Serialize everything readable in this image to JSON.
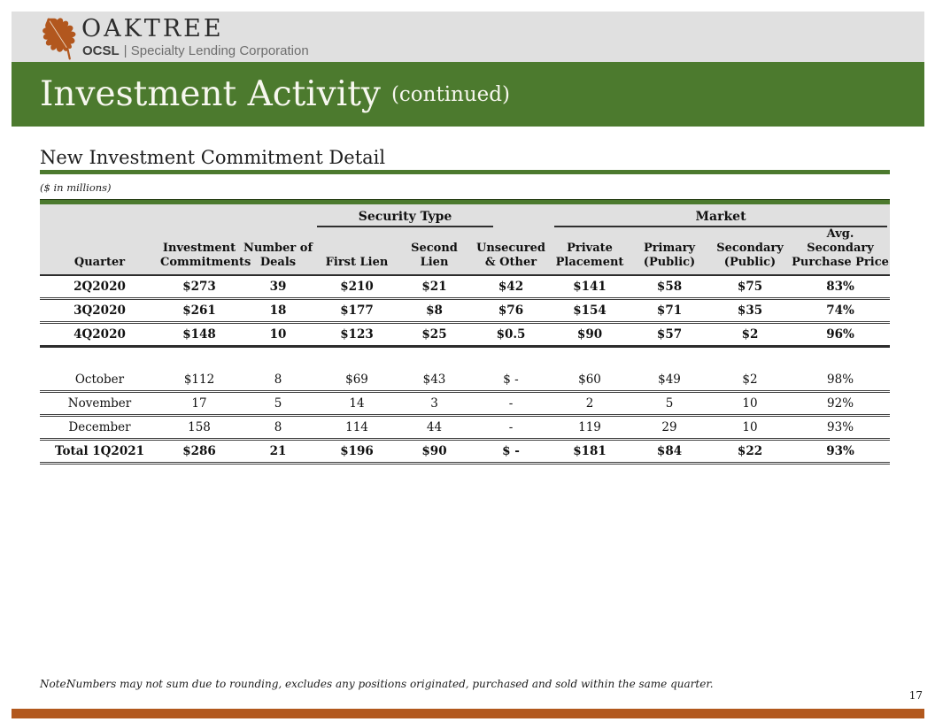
{
  "header": {
    "brand": "OAKTREE",
    "sub_brand_bold": "OCSL",
    "sub_brand_rest": "| Specialty Lending Corporation",
    "leaf_icon_color": "#b2571e"
  },
  "banner": {
    "title": "Investment Activity",
    "title_suffix": "(continued)",
    "background_color": "#4c7a2e"
  },
  "section": {
    "title": "New Investment Commitment Detail",
    "units_note": "($ in millions)"
  },
  "table": {
    "groups": [
      {
        "label": "Security Type",
        "span": 3
      },
      {
        "label": "Market",
        "span": 4
      }
    ],
    "columns": [
      {
        "lines": [
          "Quarter"
        ]
      },
      {
        "lines": [
          "Investment",
          "Commitments"
        ]
      },
      {
        "lines": [
          "Number of",
          "Deals"
        ]
      },
      {
        "lines": [
          "First Lien"
        ]
      },
      {
        "lines": [
          "Second Lien"
        ]
      },
      {
        "lines": [
          "Unsecured",
          "& Other"
        ]
      },
      {
        "lines": [
          "Private",
          "Placement"
        ]
      },
      {
        "lines": [
          "Primary",
          "(Public)"
        ]
      },
      {
        "lines": [
          "Secondary",
          "(Public)"
        ]
      },
      {
        "lines": [
          "Avg. Secondary",
          "Purchase Price"
        ]
      }
    ],
    "rows": [
      {
        "cells": [
          "2Q2020",
          "$273",
          "39",
          "$210",
          "$21",
          "$42",
          "$141",
          "$58",
          "$75",
          "83%"
        ],
        "bold": true
      },
      {
        "cells": [
          "3Q2020",
          "$261",
          "18",
          "$177",
          "$8",
          "$76",
          "$154",
          "$71",
          "$35",
          "74%"
        ],
        "bold": true
      },
      {
        "cells": [
          "4Q2020",
          "$148",
          "10",
          "$123",
          "$25",
          "$0.5",
          "$90",
          "$57",
          "$2",
          "96%"
        ],
        "bold": true,
        "heavy_bottom": true
      },
      {
        "spacer": true
      },
      {
        "cells": [
          "October",
          "$112",
          "8",
          "$69",
          "$43",
          "$ -",
          "$60",
          "$49",
          "$2",
          "98%"
        ],
        "bold": false
      },
      {
        "cells": [
          "November",
          "17",
          "5",
          "14",
          "3",
          "-",
          "2",
          "5",
          "10",
          "92%"
        ],
        "bold": false
      },
      {
        "cells": [
          "December",
          "158",
          "8",
          "114",
          "44",
          "-",
          "119",
          "29",
          "10",
          "93%"
        ],
        "bold": false
      },
      {
        "cells": [
          "Total 1Q2021",
          "$286",
          "21",
          "$196",
          "$90",
          "$ -",
          "$181",
          "$84",
          "$22",
          "93%"
        ],
        "bold": true
      }
    ]
  },
  "footer": {
    "note_label": "Note:",
    "note_text": "Numbers may not sum due to rounding, excludes any positions originated, purchased and sold within the same quarter.",
    "page_number": "17"
  },
  "colors": {
    "green": "#4c7a2e",
    "rust": "#b2581d",
    "band_gray": "#e0e0e0"
  }
}
